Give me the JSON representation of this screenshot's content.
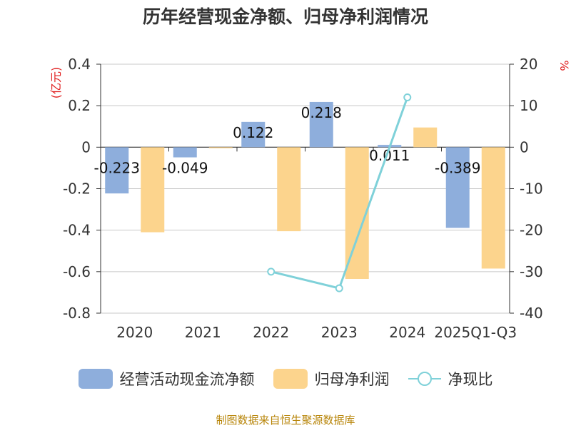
{
  "chart_data": {
    "type": "bar",
    "title": "历年经营现金净额、归母净利润情况",
    "categories": [
      "2020",
      "2021",
      "2022",
      "2023",
      "2024",
      "2025Q1-Q3"
    ],
    "series": [
      {
        "name": "经营活动现金流净额",
        "axis": "left",
        "color": "#8eaedc",
        "values": [
          -0.223,
          -0.049,
          0.122,
          0.218,
          0.011,
          -0.389
        ],
        "data_labels": [
          "-0.223",
          "-0.049",
          "0.122",
          "0.218",
          "0.011",
          "-0.389"
        ]
      },
      {
        "name": "归母净利润",
        "axis": "left",
        "color": "#fcd48d",
        "values": [
          -0.41,
          -0.005,
          -0.405,
          -0.635,
          0.095,
          -0.585
        ]
      },
      {
        "name": "净现比",
        "axis": "right",
        "type": "line",
        "color": "#7fd1d9",
        "values": [
          null,
          null,
          -30,
          -34,
          12,
          null
        ]
      }
    ],
    "y_left": {
      "label": "(亿元)",
      "ylim": [
        -0.8,
        0.4
      ],
      "ticks": [
        "0.4",
        "0.2",
        "0",
        "-0.2",
        "-0.4",
        "-0.6",
        "-0.8"
      ],
      "tick_values": [
        0.4,
        0.2,
        0,
        -0.2,
        -0.4,
        -0.6,
        -0.8
      ]
    },
    "y_right": {
      "label": "%",
      "ylim": [
        -40,
        20
      ],
      "ticks": [
        "20",
        "10",
        "0",
        "-10",
        "-20",
        "-30",
        "-40"
      ],
      "tick_values": [
        20,
        10,
        0,
        -10,
        -20,
        -30,
        -40
      ]
    },
    "grid": true,
    "legend_position": "bottom"
  },
  "source_text": "制图数据来自恒生聚源数据库"
}
